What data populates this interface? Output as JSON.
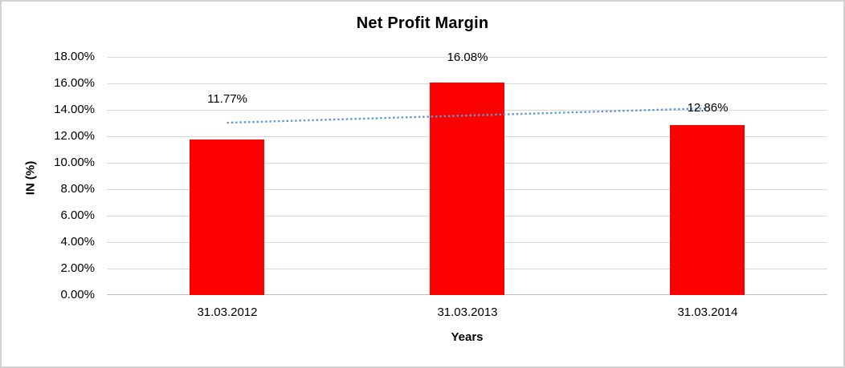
{
  "window": {
    "background": "#ffffff",
    "border_color": "#d2d2d2"
  },
  "chart_data": {
    "type": "bar",
    "title": "Net Profit Margin",
    "xlabel": "Years",
    "ylabel": "IN (%)",
    "categories": [
      "31.03.2012",
      "31.03.2013",
      "31.03.2014"
    ],
    "series": [
      {
        "name": "Net Profit Margin",
        "values": [
          11.77,
          16.08,
          12.86
        ],
        "data_labels": [
          "11.77%",
          "16.08%",
          "12.86%"
        ],
        "color": "#ff0000"
      }
    ],
    "trendline": {
      "type": "linear",
      "style": "dotted",
      "color": "#5b9bd5"
    },
    "y_axis": {
      "min": 0,
      "max": 18,
      "step": 2,
      "tick_labels": [
        "0.00%",
        "2.00%",
        "4.00%",
        "6.00%",
        "8.00%",
        "10.00%",
        "12.00%",
        "14.00%",
        "16.00%",
        "18.00%"
      ]
    },
    "grid": true,
    "legend": "none",
    "gridline_color": "#d9d9d9",
    "axis_line_color": "#bfbfbf"
  }
}
